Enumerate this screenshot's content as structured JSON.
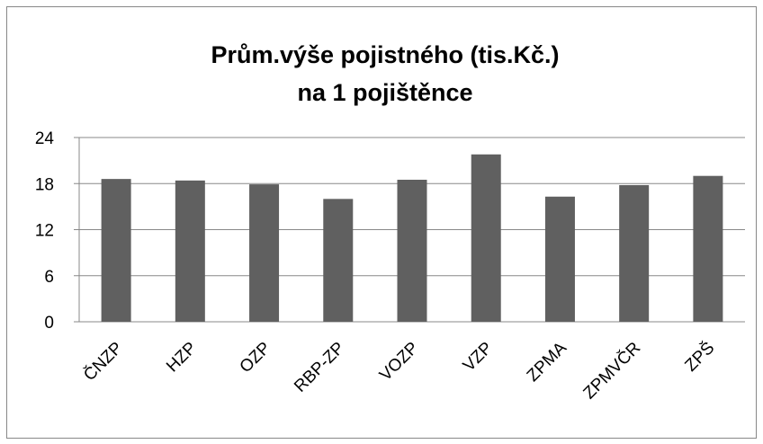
{
  "chart_data": {
    "type": "bar",
    "title": [
      "Prům.výše pojistného (tis.Kč.)",
      "na 1 pojištěnce"
    ],
    "categories": [
      "ČNZP",
      "HZP",
      "OZP",
      "RBP-ZP",
      "VOZP",
      "VZP",
      "ZPMA",
      "ZPMVČR",
      "ZPŠ"
    ],
    "values": [
      18.6,
      18.4,
      17.9,
      16.0,
      18.5,
      21.8,
      16.3,
      17.8,
      19.0
    ],
    "color": "#606060",
    "ylim": [
      0,
      24
    ],
    "yticks": [
      0,
      6,
      12,
      18,
      24
    ],
    "grid": true
  }
}
